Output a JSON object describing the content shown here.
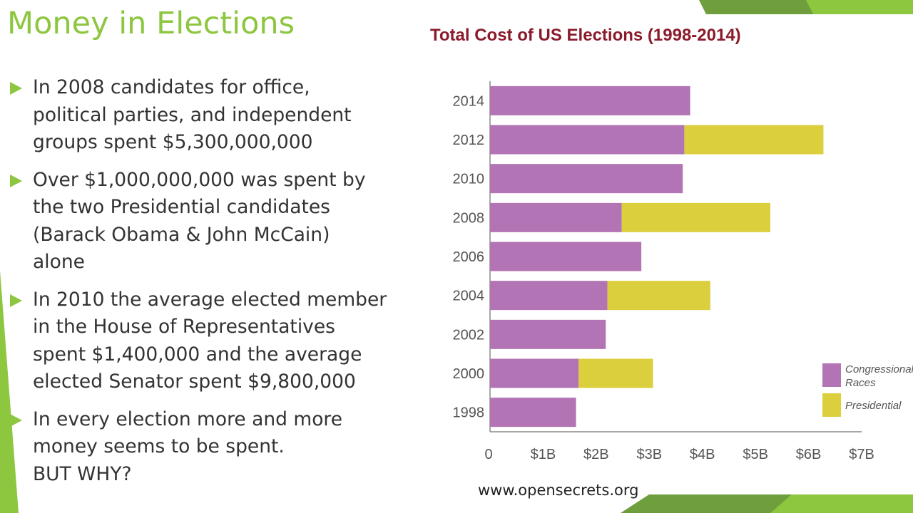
{
  "slide": {
    "title": "Money in Elections",
    "bullets": [
      {
        "text": "In 2008 candidates for office,\npolitical parties, and independent\ngroups spent $5,300,000,000"
      },
      {
        "text": "Over $1,000,000,000 was spent by\nthe two Presidential candidates\n(Barack Obama & John McCain)\nalone"
      },
      {
        "text": "In 2010 the average elected member\nin the House of Representatives\nspent $1,400,000 and the average\nelected Senator spent $9,800,000"
      },
      {
        "text": "In every election more and more\nmoney seems to be spent.\nBUT WHY?"
      }
    ],
    "source": "www.opensecrets.org"
  },
  "colors": {
    "accent": "#8dc63f",
    "congressional": "#b274b4",
    "presidential": "#dccf3e",
    "title_text": "#8b1a2b"
  },
  "chart_data": {
    "type": "bar",
    "orientation": "horizontal",
    "stacked": true,
    "title": "Total Cost of US Elections (1998-2014)",
    "xlabel": "",
    "ylabel": "",
    "categories": [
      "2014",
      "2012",
      "2010",
      "2008",
      "2006",
      "2004",
      "2002",
      "2000",
      "1998"
    ],
    "series": [
      {
        "name": "Congressional\nRaces",
        "values": [
          3.77,
          3.66,
          3.63,
          2.48,
          2.85,
          2.21,
          2.18,
          1.67,
          1.62
        ]
      },
      {
        "name": "Presidential",
        "values": [
          0,
          2.62,
          0,
          2.8,
          0,
          1.94,
          0,
          1.4,
          0
        ]
      }
    ],
    "xlim": [
      0,
      7
    ],
    "xticks": [
      "0",
      "$1B",
      "$2B",
      "$3B",
      "$4B",
      "$5B",
      "$6B",
      "$7B"
    ],
    "grid": false,
    "legend": "right"
  }
}
